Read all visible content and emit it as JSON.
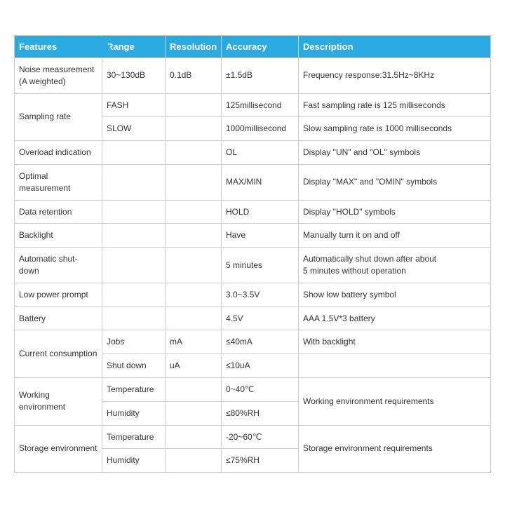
{
  "columns": [
    "Features",
    "Range",
    "Resolution",
    "Accuracy",
    "Description"
  ],
  "header_bg": "#29abe2",
  "header_color": "#ffffff",
  "border_color": "#cccccc",
  "text_color": "#333333",
  "font_size": 12,
  "rows": [
    {
      "feature": "Noise measurement\n(A weighted)",
      "range": "30~130dB",
      "resolution": "0.1dB",
      "accuracy": "±1.5dB",
      "desc": "Frequency response:31.5Hz~8KHz",
      "rowspan": 1
    },
    {
      "feature": "Sampling rate",
      "sub": [
        {
          "range": "FASH",
          "resolution": "",
          "accuracy": "125millisecond",
          "desc": "Fast sampling rate is 125 milliseconds"
        },
        {
          "range": "SLOW",
          "resolution": "",
          "accuracy": "1000millisecond",
          "desc": "Slow sampling rate is 1000 milliseconds"
        }
      ]
    },
    {
      "feature": "Overload indication",
      "range": "",
      "resolution": "",
      "accuracy": "OL",
      "desc": "Display \"UN\" and \"OL\" symbols"
    },
    {
      "feature": "Optimal measurement",
      "range": "",
      "resolution": "",
      "accuracy": "MAX/MIN",
      "desc": "Display \"MAX\" and \"OMIN\" symbols"
    },
    {
      "feature": "Data retention",
      "range": "",
      "resolution": "",
      "accuracy": "HOLD",
      "desc": "Display \"HOLD\" symbols"
    },
    {
      "feature": "Backlight",
      "range": "",
      "resolution": "",
      "accuracy": "Have",
      "desc": "Manually turn it on and off"
    },
    {
      "feature": "Automatic shut-down",
      "range": "",
      "resolution": "",
      "accuracy": "5 minutes",
      "desc": "Automatically shut down after about\n5 minutes without operation"
    },
    {
      "feature": "Low power prompt",
      "range": "",
      "resolution": "",
      "accuracy": "3.0~3.5V",
      "desc": "Show low battery symbol"
    },
    {
      "feature": "Battery",
      "range": "",
      "resolution": "",
      "accuracy": "4.5V",
      "desc": "AAA 1.5V*3 battery"
    },
    {
      "feature": "Current consumption",
      "sub": [
        {
          "range": "Jobs",
          "resolution": "mA",
          "accuracy": "≤40mA",
          "desc": "With backlight"
        },
        {
          "range": "Shut down",
          "resolution": "uA",
          "accuracy": "≤10uA",
          "desc": ""
        }
      ]
    },
    {
      "feature": "Working environment",
      "merged_desc": "Working environment requirements",
      "sub": [
        {
          "range": "Temperature",
          "resolution": "",
          "accuracy": "0~40℃"
        },
        {
          "range": "Humidity",
          "resolution": "",
          "accuracy": "≤80%RH"
        }
      ]
    },
    {
      "feature": "Storage environment",
      "merged_desc": "Storage environment requirements",
      "sub": [
        {
          "range": "Temperature",
          "resolution": "",
          "accuracy": "-20~60℃"
        },
        {
          "range": "Humidity",
          "resolution": "",
          "accuracy": "≤75%RH"
        }
      ]
    }
  ]
}
